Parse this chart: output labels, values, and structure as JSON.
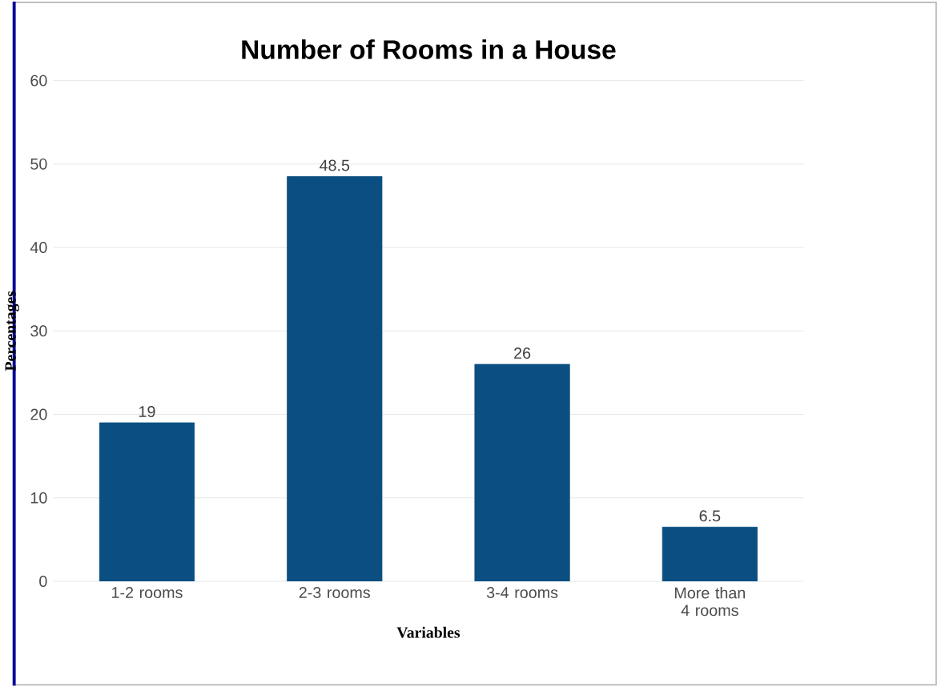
{
  "chart_data": {
    "type": "bar",
    "title": "Number of Rooms in a House",
    "xlabel": "Variables",
    "ylabel": "Percentages",
    "categories": [
      "1-2 rooms",
      "2-3 rooms",
      "3-4 rooms",
      "More than 4 rooms"
    ],
    "values": [
      19,
      48.5,
      26,
      6.5
    ],
    "color": "#0b4f82",
    "ylim": [
      0,
      60
    ],
    "yticks": [
      0,
      10,
      20,
      30,
      40,
      50,
      60
    ],
    "grid": "y",
    "data_labels": true
  }
}
